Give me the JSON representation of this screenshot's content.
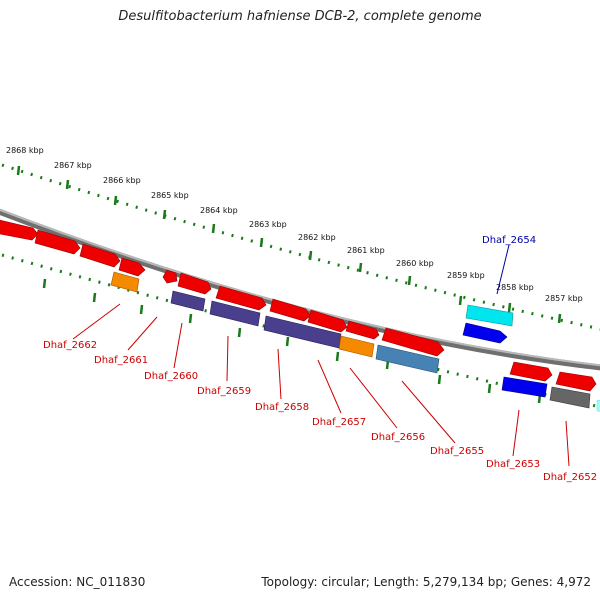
{
  "title": "Desulfitobacterium hafniense DCB-2, complete genome",
  "footer": {
    "accession": "Accession: NC_011830",
    "summary": "Topology: circular; Length: 5,279,134 bp; Genes: 4,972"
  },
  "scale_labels": [
    "2868 kbp",
    "2867 kbp",
    "2866 kbp",
    "2865 kbp",
    "2864 kbp",
    "2863 kbp",
    "2862 kbp",
    "2861 kbp",
    "2860 kbp",
    "2859 kbp",
    "2858 kbp",
    "2857 kbp"
  ],
  "gene_labels": [
    {
      "text": "Dhaf_2662",
      "color": "#cc0000"
    },
    {
      "text": "Dhaf_2661",
      "color": "#cc0000"
    },
    {
      "text": "Dhaf_2660",
      "color": "#cc0000"
    },
    {
      "text": "Dhaf_2659",
      "color": "#cc0000"
    },
    {
      "text": "Dhaf_2658",
      "color": "#cc0000"
    },
    {
      "text": "Dhaf_2657",
      "color": "#cc0000"
    },
    {
      "text": "Dhaf_2656",
      "color": "#cc0000"
    },
    {
      "text": "Dhaf_2655",
      "color": "#cc0000"
    },
    {
      "text": "Dhaf_2654",
      "color": "#0000aa"
    },
    {
      "text": "Dhaf_2653",
      "color": "#cc0000"
    },
    {
      "text": "Dhaf_2652",
      "color": "#cc0000"
    }
  ],
  "colors": {
    "backbone": "#888888",
    "scale_dots": "#1a7a1a",
    "red": "#ee0000",
    "orange": "#f58a00",
    "purple": "#4a3f8c",
    "steelblue": "#4682b4",
    "cyan": "#00e5ee",
    "blue": "#0000ee",
    "gray": "#666666"
  }
}
